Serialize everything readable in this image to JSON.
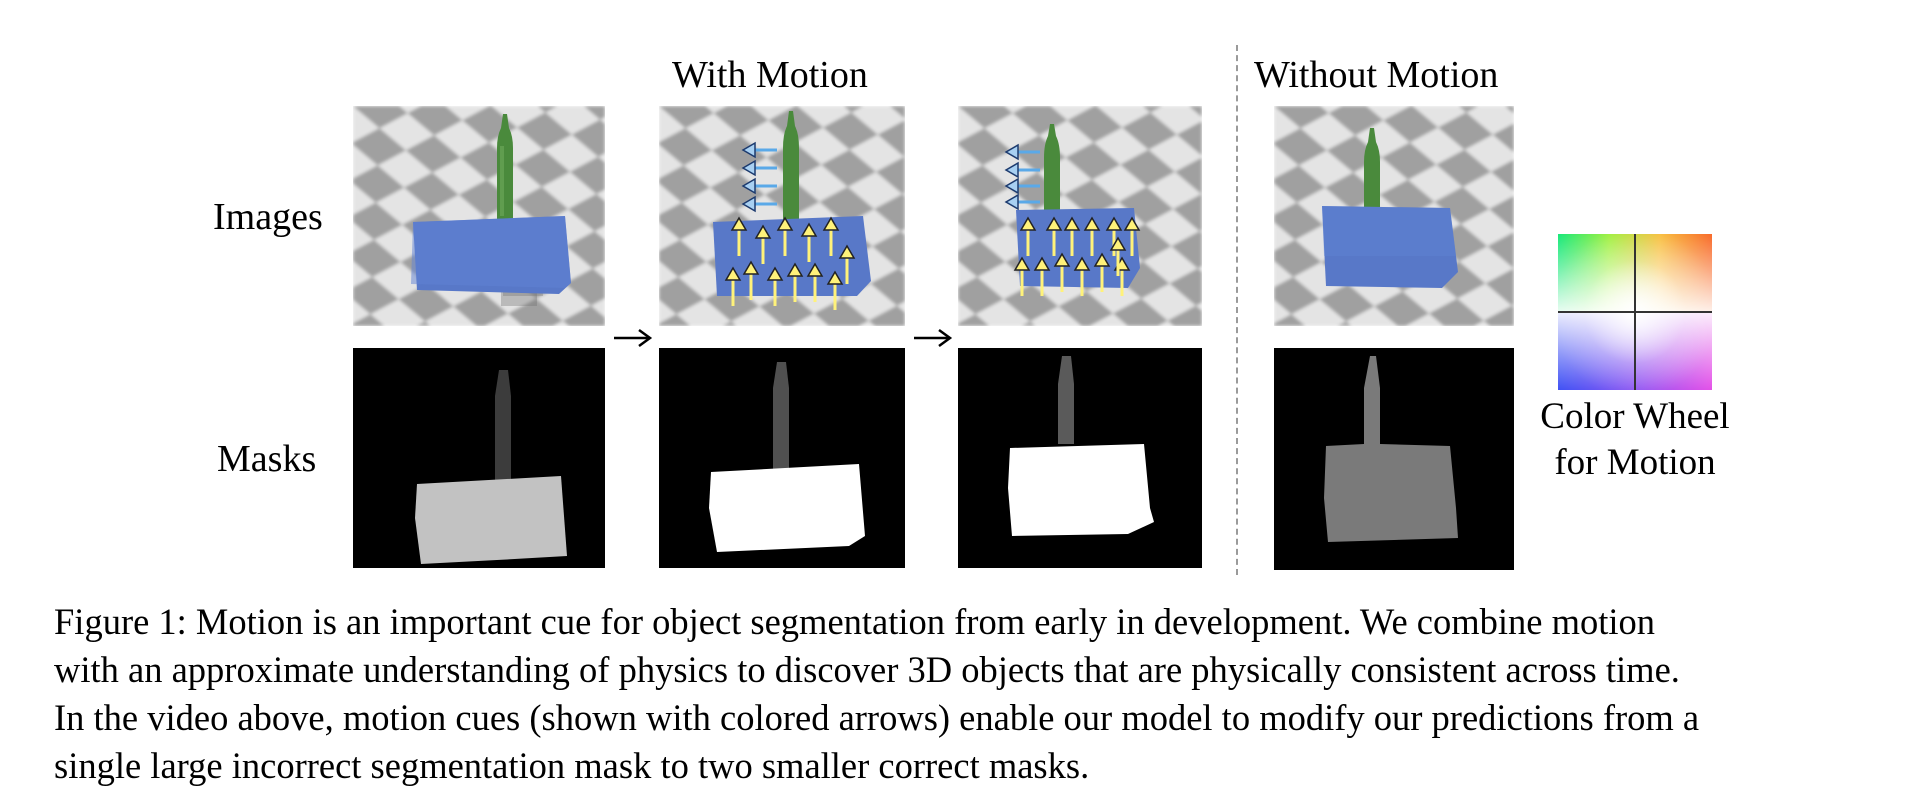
{
  "figure": {
    "headers": {
      "with_motion": "With Motion",
      "without_motion": "Without Motion"
    },
    "row_labels": {
      "images": "Images",
      "masks": "Masks"
    },
    "color_wheel": {
      "label_line1": "Color Wheel",
      "label_line2": "for Motion"
    },
    "panel_icons": {
      "image_panel": "scene-image-icon",
      "mask_panel": "segmentation-mask-icon",
      "transition": "right-arrow-icon"
    },
    "colors": {
      "floor_light": "#e6e6e6",
      "floor_dark": "#9b9b9b",
      "box_blue": "#5878c8",
      "bottle_green": "#4a8a3c",
      "motion_arrow_yellow": "#fff27a",
      "motion_arrow_blue": "#5aa9e8",
      "mask_background": "#000000"
    }
  },
  "caption": {
    "lines": [
      "Figure 1: Motion is an important cue for object segmentation from early in development. We combine motion",
      "with an approximate understanding of physics to discover 3D objects that are physically consistent across time.",
      "In the video above, motion cues (shown with colored arrows) enable our model to modify our predictions from a",
      "single large incorrect segmentation mask to two smaller correct masks."
    ]
  }
}
